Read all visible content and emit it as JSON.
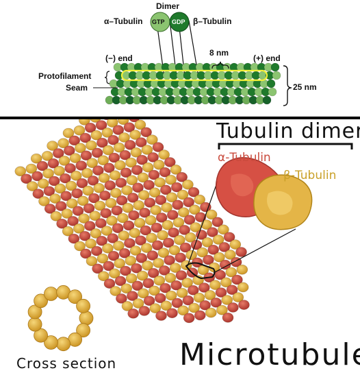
{
  "top_diagram": {
    "dimer_label": "Dimer",
    "alpha_label": "α–Tubulin",
    "beta_label": "β–Tubulin",
    "gtp_label": "GTP",
    "gdp_label": "GDP",
    "minus_end_label": "(−) end",
    "plus_end_label": "(+) end",
    "protofilament_label": "Protofilament",
    "seam_label": "Seam",
    "spacing_label": "8 nm",
    "diameter_label": "25 nm"
  },
  "bottom_diagram": {
    "dimer_title": "Tubulin dimer",
    "alpha_label": "α-Tubulin",
    "beta_label": "β-Tubulin",
    "cross_section_label": "Cross section",
    "main_title": "Microtubule"
  },
  "colors": {
    "alpha_green": "#8bc470",
    "beta_green": "#1f7a2c",
    "alpha_red": "#cd4a3a",
    "beta_gold": "#e0b040",
    "highlight_yellow": "#f2f03a"
  }
}
